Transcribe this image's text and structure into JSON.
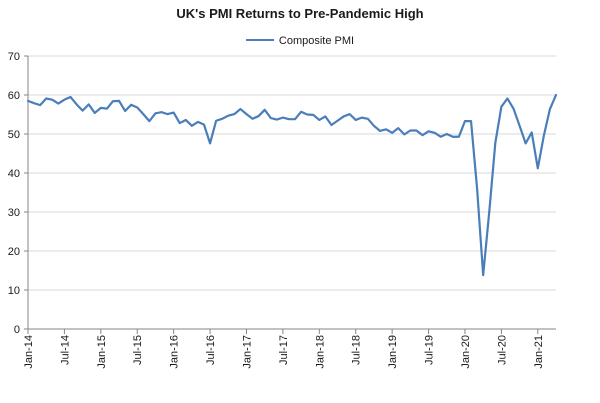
{
  "chart_data": {
    "type": "line",
    "title": "UK's PMI Returns to Pre-Pandemic High",
    "xlabel": "",
    "ylabel": "",
    "ylim": [
      0,
      70
    ],
    "yticks": [
      0,
      10,
      20,
      30,
      40,
      50,
      60,
      70
    ],
    "grid": "horizontal",
    "legend_position": "top-center",
    "x_tick_labels": [
      "Jan-14",
      "Jul-14",
      "Jan-15",
      "Jul-15",
      "Jan-16",
      "Jul-16",
      "Jan-17",
      "Jul-17",
      "Jan-18",
      "Jul-18",
      "Jan-19",
      "Jul-19",
      "Jan-20",
      "Jul-20",
      "Jan-21"
    ],
    "colors": {
      "series": "#4a7ebb",
      "grid": "#d9d9d9",
      "axis": "#868686"
    },
    "x": [
      "Jan-14",
      "Feb-14",
      "Mar-14",
      "Apr-14",
      "May-14",
      "Jun-14",
      "Jul-14",
      "Aug-14",
      "Sep-14",
      "Oct-14",
      "Nov-14",
      "Dec-14",
      "Jan-15",
      "Feb-15",
      "Mar-15",
      "Apr-15",
      "May-15",
      "Jun-15",
      "Jul-15",
      "Aug-15",
      "Sep-15",
      "Oct-15",
      "Nov-15",
      "Dec-15",
      "Jan-16",
      "Feb-16",
      "Mar-16",
      "Apr-16",
      "May-16",
      "Jun-16",
      "Jul-16",
      "Aug-16",
      "Sep-16",
      "Oct-16",
      "Nov-16",
      "Dec-16",
      "Jan-17",
      "Feb-17",
      "Mar-17",
      "Apr-17",
      "May-17",
      "Jun-17",
      "Jul-17",
      "Aug-17",
      "Sep-17",
      "Oct-17",
      "Nov-17",
      "Dec-17",
      "Jan-18",
      "Feb-18",
      "Mar-18",
      "Apr-18",
      "May-18",
      "Jun-18",
      "Jul-18",
      "Aug-18",
      "Sep-18",
      "Oct-18",
      "Nov-18",
      "Dec-18",
      "Jan-19",
      "Feb-19",
      "Mar-19",
      "Apr-19",
      "May-19",
      "Jun-19",
      "Jul-19",
      "Aug-19",
      "Sep-19",
      "Oct-19",
      "Nov-19",
      "Dec-19",
      "Jan-20",
      "Feb-20",
      "Mar-20",
      "Apr-20",
      "May-20",
      "Jun-20",
      "Jul-20",
      "Aug-20",
      "Sep-20",
      "Oct-20",
      "Nov-20",
      "Dec-20",
      "Jan-21",
      "Feb-21",
      "Mar-21",
      "Apr-21"
    ],
    "series": [
      {
        "name": "Composite PMI",
        "values": [
          58.5,
          57.9,
          57.4,
          59.1,
          58.8,
          57.8,
          58.8,
          59.5,
          57.6,
          56.0,
          57.6,
          55.4,
          56.7,
          56.5,
          58.4,
          58.5,
          55.9,
          57.5,
          56.8,
          55.1,
          53.3,
          55.3,
          55.6,
          55.1,
          55.5,
          52.8,
          53.6,
          52.1,
          53.1,
          52.4,
          47.6,
          53.4,
          53.9,
          54.7,
          55.1,
          56.4,
          55.1,
          53.9,
          54.6,
          56.2,
          54.1,
          53.7,
          54.2,
          53.8,
          53.8,
          55.7,
          55.0,
          54.9,
          53.6,
          54.5,
          52.3,
          53.4,
          54.5,
          55.1,
          53.6,
          54.2,
          53.9,
          52.1,
          50.8,
          51.2,
          50.3,
          51.5,
          49.9,
          50.9,
          50.9,
          49.7,
          50.7,
          50.3,
          49.3,
          50.0,
          49.3,
          49.3,
          53.3,
          53.3,
          36.0,
          13.8,
          30.0,
          47.7,
          57.0,
          59.1,
          56.5,
          52.1,
          47.6,
          50.4,
          41.2,
          49.6,
          56.4,
          60.0
        ]
      }
    ]
  }
}
